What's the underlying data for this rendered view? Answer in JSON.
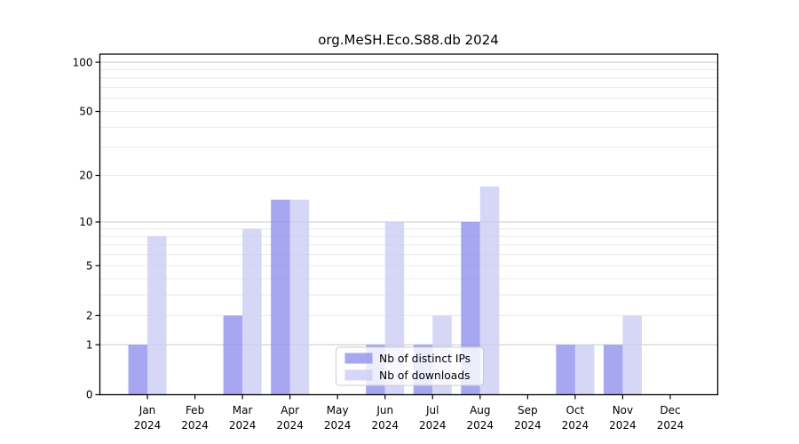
{
  "chart_data": {
    "type": "bar",
    "title": "org.MeSH.Eco.S88.db 2024",
    "categories": [
      "Jan 2024",
      "Feb 2024",
      "Mar 2024",
      "Apr 2024",
      "May 2024",
      "Jun 2024",
      "Jul 2024",
      "Aug 2024",
      "Sep 2024",
      "Oct 2024",
      "Nov 2024",
      "Dec 2024"
    ],
    "x_tick_lines": [
      {
        "month": "Jan",
        "year": "2024"
      },
      {
        "month": "Feb",
        "year": "2024"
      },
      {
        "month": "Mar",
        "year": "2024"
      },
      {
        "month": "Apr",
        "year": "2024"
      },
      {
        "month": "May",
        "year": "2024"
      },
      {
        "month": "Jun",
        "year": "2024"
      },
      {
        "month": "Jul",
        "year": "2024"
      },
      {
        "month": "Aug",
        "year": "2024"
      },
      {
        "month": "Sep",
        "year": "2024"
      },
      {
        "month": "Oct",
        "year": "2024"
      },
      {
        "month": "Nov",
        "year": "2024"
      },
      {
        "month": "Dec",
        "year": "2024"
      }
    ],
    "series": [
      {
        "name": "Nb of distinct IPs",
        "color": "#9090ee",
        "values": [
          1,
          0,
          2,
          14,
          0,
          1,
          1,
          10,
          0,
          1,
          1,
          0
        ]
      },
      {
        "name": "Nb of downloads",
        "color": "#ccccf5",
        "values": [
          8,
          0,
          9,
          14,
          0,
          10,
          2,
          17,
          0,
          1,
          2,
          0
        ]
      }
    ],
    "y_axis": {
      "scale": "log10(value+1)",
      "tick_values": [
        0,
        1,
        2,
        5,
        10,
        20,
        50,
        100
      ],
      "tick_labels": [
        "0",
        "1",
        "2",
        "5",
        "10",
        "20",
        "50",
        "100"
      ],
      "ylim": [
        0,
        112
      ]
    },
    "grid": "on",
    "legend_position": "center-bottom"
  },
  "legend": {
    "items": [
      {
        "label": "Nb of distinct IPs",
        "color": "#9090ee"
      },
      {
        "label": "Nb of downloads",
        "color": "#ccccf5"
      }
    ]
  }
}
